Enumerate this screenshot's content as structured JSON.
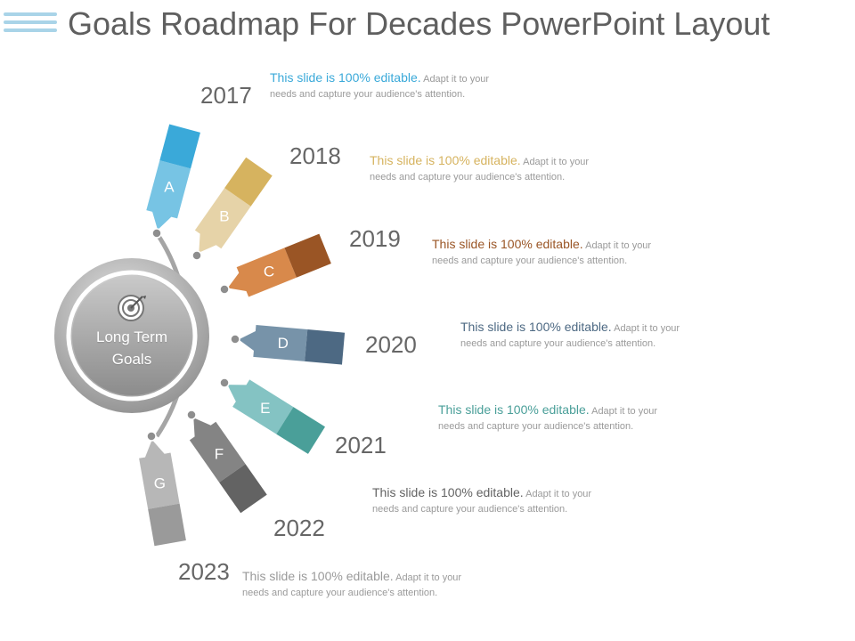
{
  "header": {
    "title": "Goals Roadmap For Decades PowerPoint Layout"
  },
  "center": {
    "label_line1": "Long Term",
    "label_line2": "Goals"
  },
  "milestones": [
    {
      "letter": "A",
      "year": "2017",
      "color_light": "#77c4e4",
      "color_dark": "#3aa9d9",
      "text_color": "#3aa9d9"
    },
    {
      "letter": "B",
      "year": "2018",
      "color_light": "#e6d3a8",
      "color_dark": "#d6b35f",
      "text_color": "#d6b35f"
    },
    {
      "letter": "C",
      "year": "2019",
      "color_light": "#d8894b",
      "color_dark": "#9a5525",
      "text_color": "#9a5525"
    },
    {
      "letter": "D",
      "year": "2020",
      "color_light": "#7793a9",
      "color_dark": "#4d6983",
      "text_color": "#4d6983"
    },
    {
      "letter": "E",
      "year": "2021",
      "color_light": "#84c3c3",
      "color_dark": "#4a9f99",
      "text_color": "#4a9f99"
    },
    {
      "letter": "F",
      "year": "2022",
      "color_light": "#848484",
      "color_dark": "#636363",
      "text_color": "#636363"
    },
    {
      "letter": "G",
      "year": "2023",
      "color_light": "#b7b7b7",
      "color_dark": "#9a9a9a",
      "text_color": "#9a9a9a"
    }
  ],
  "description": {
    "lead": "This slide is 100% editable.",
    "body_line1": "Adapt it to your",
    "body_line2": "needs and capture your audience's attention."
  }
}
